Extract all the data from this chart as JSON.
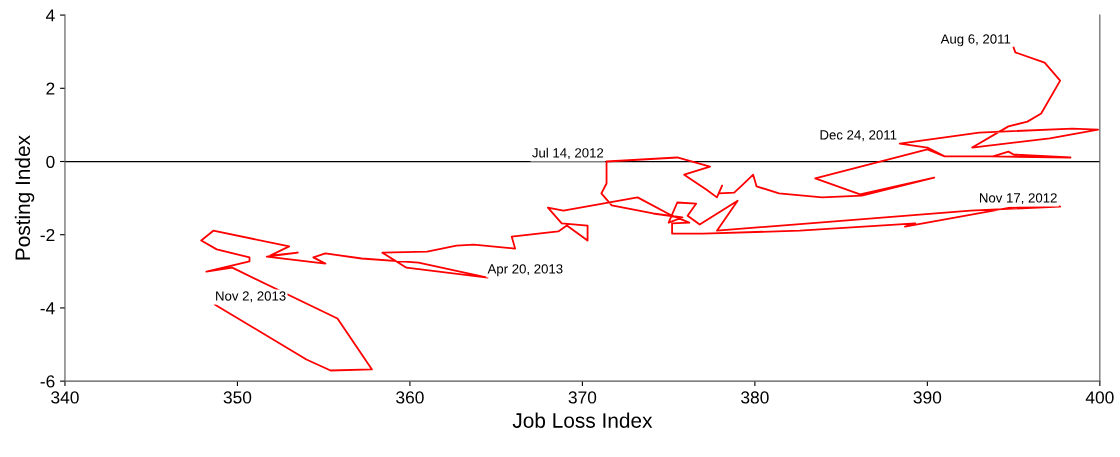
{
  "chart_data": {
    "type": "line",
    "xlabel": "Job Loss Index",
    "ylabel": "Posting Index",
    "xlim": [
      340,
      400
    ],
    "xticks": [
      340,
      350,
      360,
      370,
      380,
      390,
      400
    ],
    "ylim": [
      -6,
      4
    ],
    "yticks": [
      -6,
      -4,
      -2,
      0,
      2,
      4
    ],
    "grid": false,
    "legend": false,
    "marker": "none",
    "line_style": "solid",
    "ref_lines": [
      {
        "axis": "y",
        "value": 0,
        "color": "#000000"
      }
    ],
    "series": [
      {
        "color": "#ff0000",
        "x": [
          395.0,
          395.1,
          396.8,
          397.7,
          396.6,
          395.8,
          394.7,
          392.6,
          397.1,
          399.9,
          398.4,
          393.0,
          388.4,
          390.0,
          391.0,
          393.8,
          394.7,
          395.0,
          398.3,
          393.6,
          391.0,
          390.0,
          383.5,
          386.1,
          390.4,
          386.2,
          383.9,
          381.4,
          380.1,
          379.9,
          379.3,
          378.8,
          377.9,
          378.1,
          377.8,
          377.2,
          375.9,
          377.4,
          375.5,
          371.4,
          371.4,
          371.1,
          371.7,
          374.1,
          375.8,
          375.0,
          375.5,
          376.6,
          376.1,
          376.8,
          379.0,
          377.8,
          392.5,
          397.7,
          394.8,
          388.7,
          389.3,
          382.6,
          377.0,
          375.2,
          375.2,
          376.2,
          375.2,
          373.2,
          368.9,
          368.0,
          368.8,
          370.3,
          370.3,
          369.1,
          368.6,
          365.9,
          366.1,
          363.7,
          362.7,
          361.0,
          358.4,
          359.8,
          364.5,
          360.5,
          357.2,
          355.1,
          354.4,
          355.1,
          351.7,
          353.5,
          351.9,
          353.0,
          348.6,
          347.9,
          348.8,
          350.7,
          350.7,
          348.2,
          349.7,
          355.8,
          357.8,
          355.4,
          354.0,
          348.7
        ],
        "values": [
          3.11,
          2.98,
          2.7,
          2.21,
          1.31,
          1.09,
          0.96,
          0.38,
          0.63,
          0.87,
          0.9,
          0.79,
          0.49,
          0.38,
          0.14,
          0.14,
          0.27,
          0.19,
          0.11,
          0.14,
          0.14,
          0.33,
          -0.46,
          -0.9,
          -0.44,
          -0.93,
          -0.98,
          -0.87,
          -0.68,
          -0.36,
          -0.63,
          -0.85,
          -0.87,
          -0.66,
          -0.98,
          -0.77,
          -0.36,
          -0.14,
          0.11,
          0.0,
          -0.6,
          -0.87,
          -1.2,
          -1.42,
          -1.53,
          -1.67,
          -1.12,
          -1.15,
          -1.48,
          -1.72,
          -1.07,
          -1.89,
          -1.34,
          -1.23,
          -1.26,
          -1.78,
          -1.69,
          -1.89,
          -1.97,
          -1.97,
          -1.69,
          -1.67,
          -1.48,
          -0.98,
          -1.34,
          -1.26,
          -1.69,
          -1.75,
          -2.16,
          -1.75,
          -1.91,
          -2.05,
          -2.38,
          -2.27,
          -2.3,
          -2.46,
          -2.49,
          -2.9,
          -3.17,
          -2.76,
          -2.65,
          -2.51,
          -2.62,
          -2.79,
          -2.6,
          -2.49,
          -2.57,
          -2.32,
          -1.89,
          -2.16,
          -2.4,
          -2.62,
          -2.73,
          -3.01,
          -2.9,
          -4.29,
          -5.68,
          -5.71,
          -5.41,
          -3.91
        ]
      }
    ],
    "annotations": [
      {
        "text": "Aug 6, 2011",
        "x": 395.0,
        "y": 3.11
      },
      {
        "text": "Dec 24, 2011",
        "x": 388.4,
        "y": 0.49
      },
      {
        "text": "Jul 14, 2012",
        "x": 371.4,
        "y": 0.0
      },
      {
        "text": "Nov 17, 2012",
        "x": 397.7,
        "y": -1.23
      },
      {
        "text": "Apr 20, 2013",
        "x": 364.5,
        "y": -3.17
      },
      {
        "text": "Nov 2, 2013",
        "x": 348.7,
        "y": -3.91
      }
    ]
  }
}
